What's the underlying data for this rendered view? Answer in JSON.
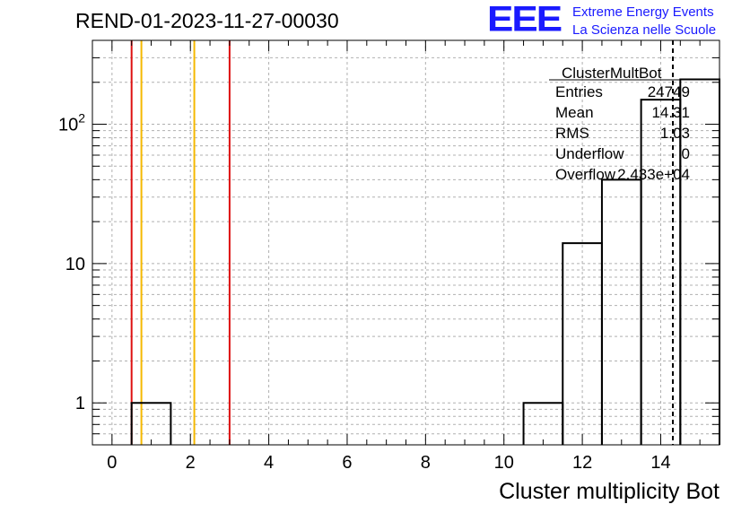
{
  "header": {
    "run_title": "REND-01-2023-11-27-00030",
    "logo_mark": "EEE",
    "logo_line1": "Extreme Energy Events",
    "logo_line2": "La Scienza nelle Scuole"
  },
  "stats_box": {
    "title": "ClusterMultBot",
    "rows": [
      {
        "label": "Entries",
        "value": "24749"
      },
      {
        "label": "Mean",
        "value": "14.31"
      },
      {
        "label": "RMS",
        "value": "1.03"
      },
      {
        "label": "Underflow",
        "value": "0"
      },
      {
        "label": "Overflow",
        "value": "2.433e+04"
      }
    ]
  },
  "chart_data": {
    "type": "histogram",
    "title": "REND-01-2023-11-27-00030",
    "xlabel": "Cluster multiplicity Bot",
    "ylabel": "",
    "xlim": [
      -0.5,
      15.5
    ],
    "ylim": [
      0.5,
      400
    ],
    "yscale": "log",
    "grid": true,
    "x_ticks": [
      0,
      2,
      4,
      6,
      8,
      10,
      12,
      14
    ],
    "y_ticks": [
      {
        "value": 1,
        "label": "1"
      },
      {
        "value": 10,
        "label": "10"
      },
      {
        "value": 100,
        "label": "10^2"
      }
    ],
    "bins": [
      {
        "low": 0.5,
        "high": 1.5,
        "count": 1
      },
      {
        "low": 10.5,
        "high": 11.5,
        "count": 1
      },
      {
        "low": 11.5,
        "high": 12.5,
        "count": 14
      },
      {
        "low": 12.5,
        "high": 13.5,
        "count": 40
      },
      {
        "low": 13.5,
        "high": 14.5,
        "count": 150
      },
      {
        "low": 14.5,
        "high": 15.5,
        "count": 210
      }
    ],
    "vertical_lines": [
      {
        "x": 0.5,
        "color": "#dd1111",
        "style": "solid"
      },
      {
        "x": 0.75,
        "color": "#f5b800",
        "style": "solid"
      },
      {
        "x": 2.1,
        "color": "#f5b800",
        "style": "solid"
      },
      {
        "x": 3.0,
        "color": "#dd1111",
        "style": "solid"
      },
      {
        "x": 14.31,
        "color": "#000000",
        "style": "dashed"
      }
    ]
  }
}
